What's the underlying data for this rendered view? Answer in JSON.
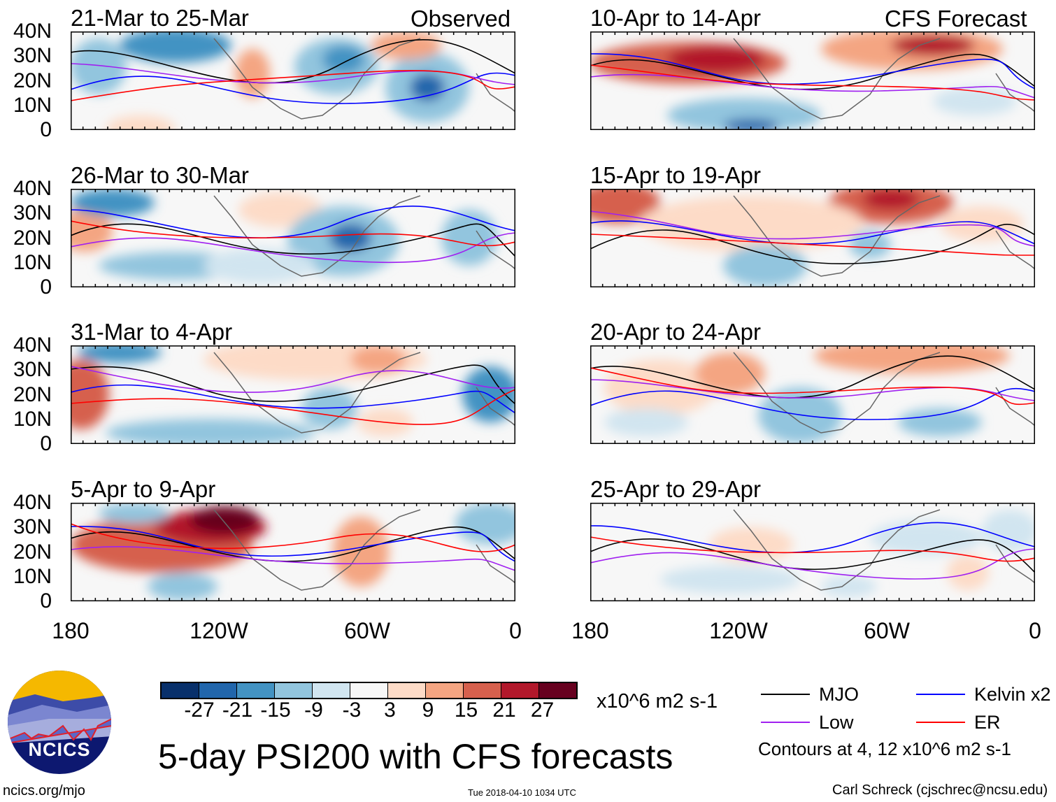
{
  "headers": {
    "observed": "Observed",
    "forecast": "CFS Forecast"
  },
  "panels_observed": [
    {
      "title": "21-Mar to 25-Mar"
    },
    {
      "title": "26-Mar to 30-Mar"
    },
    {
      "title": "31-Mar to 4-Apr"
    },
    {
      "title": "5-Apr to 9-Apr"
    }
  ],
  "panels_forecast": [
    {
      "title": "10-Apr to 14-Apr"
    },
    {
      "title": "15-Apr to 19-Apr"
    },
    {
      "title": "20-Apr to 24-Apr"
    },
    {
      "title": "25-Apr to 29-Apr"
    }
  ],
  "y_ticks": [
    "40N",
    "30N",
    "20N",
    "10N",
    "0"
  ],
  "x_ticks": [
    "180",
    "120W",
    "60W",
    "0"
  ],
  "colorbar": {
    "colors": [
      "#08306b",
      "#2166ac",
      "#4393c3",
      "#92c5de",
      "#d1e5f0",
      "#f7f7f7",
      "#fddbc7",
      "#f4a582",
      "#d6604d",
      "#b2182b",
      "#67001f"
    ],
    "labels": [
      "-27",
      "-21",
      "-15",
      "-9",
      "-3",
      "3",
      "9",
      "15",
      "21",
      "27"
    ],
    "units": "x10^6 m2 s-1"
  },
  "legend": {
    "items": [
      {
        "label": "MJO",
        "color": "#000000"
      },
      {
        "label": "Kelvin x2",
        "color": "#0000ff"
      },
      {
        "label": "Low",
        "color": "#a020f0"
      },
      {
        "label": "ER",
        "color": "#ff0000"
      }
    ],
    "note": "Contours at 4, 12 x10^6 m2 s-1"
  },
  "title": "5-day PSI200 with CFS forecasts",
  "logo": {
    "text": "NCICS"
  },
  "url": "ncics.org/mjo",
  "timestamp": "Tue 2018-04-10 1034 UTC",
  "credit": "Carl Schreck (cjschrec@ncsu.edu)"
}
